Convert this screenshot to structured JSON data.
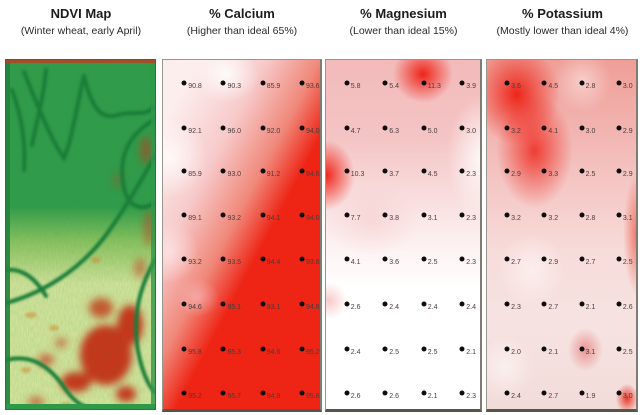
{
  "figure": {
    "background": "#ffffff",
    "description_colors": {
      "map_red": "#ee2414",
      "ndvi_green": "#2f9c48",
      "ndvi_yellow": "#dce89e",
      "ndvi_stress_red": "#d22f12",
      "sample_dot": "#0d0d0d"
    }
  },
  "chart_data": [
    {
      "type": "heatmap",
      "id": "ndvi",
      "title": "NDVI Map",
      "subtitle": "(Winter wheat, early April)"
    },
    {
      "type": "heatmap",
      "id": "calcium",
      "title": "% Calcium",
      "subtitle": "(Higher than ideal 65%)",
      "cols_frac": [
        0.135,
        0.385,
        0.635,
        0.885
      ],
      "rows_frac": [
        0.065,
        0.195,
        0.318,
        0.445,
        0.57,
        0.7,
        0.828,
        0.955
      ],
      "values": [
        [
          "90.8",
          "90.3",
          "85.9",
          "93.6"
        ],
        [
          "92.1",
          "96.0",
          "92.0",
          "94.0"
        ],
        [
          "85.9",
          "93.0",
          "91.2",
          "94.6"
        ],
        [
          "89.1",
          "93.2",
          "94.1",
          "94.0"
        ],
        [
          "93.2",
          "93.5",
          "94.4",
          "93.8"
        ],
        [
          "94.6",
          "95.1",
          "93.1",
          "94.8"
        ],
        [
          "95.8",
          "95.3",
          "94.6",
          "95.2"
        ],
        [
          "95.2",
          "95.7",
          "94.9",
          "95.6"
        ]
      ]
    },
    {
      "type": "heatmap",
      "id": "magnesium",
      "title": "% Magnesium",
      "subtitle": "(Lower than ideal 15%)",
      "cols_frac": [
        0.135,
        0.385,
        0.635,
        0.885
      ],
      "rows_frac": [
        0.065,
        0.195,
        0.318,
        0.445,
        0.57,
        0.7,
        0.828,
        0.955
      ],
      "values": [
        [
          "5.8",
          "5.4",
          "11.3",
          "3.9"
        ],
        [
          "4.7",
          "6.3",
          "5.0",
          "3.0"
        ],
        [
          "10.3",
          "3.7",
          "4.5",
          "2.3"
        ],
        [
          "7.7",
          "3.8",
          "3.1",
          "2.3"
        ],
        [
          "4.1",
          "3.6",
          "2.5",
          "2.3"
        ],
        [
          "2.6",
          "2.4",
          "2.4",
          "2.4"
        ],
        [
          "2.4",
          "2.5",
          "2.5",
          "2.1"
        ],
        [
          "2.6",
          "2.6",
          "2.1",
          "2.3"
        ]
      ]
    },
    {
      "type": "heatmap",
      "id": "potassium",
      "title": "% Potassium",
      "subtitle": "(Mostly lower than ideal 4%)",
      "cols_frac": [
        0.135,
        0.385,
        0.635,
        0.885
      ],
      "rows_frac": [
        0.065,
        0.195,
        0.318,
        0.445,
        0.57,
        0.7,
        0.828,
        0.955
      ],
      "values": [
        [
          "3.6",
          "4.5",
          "2.8",
          "3.0"
        ],
        [
          "3.2",
          "4.1",
          "3.0",
          "2.9"
        ],
        [
          "2.9",
          "3.3",
          "2.5",
          "2.9"
        ],
        [
          "3.2",
          "3.2",
          "2.8",
          "3.1"
        ],
        [
          "2.7",
          "2.9",
          "2.7",
          "2.5"
        ],
        [
          "2.3",
          "2.7",
          "2.1",
          "2.6"
        ],
        [
          "2.0",
          "2.1",
          "3.1",
          "2.5"
        ],
        [
          "2.4",
          "2.7",
          "1.9",
          "3.0"
        ]
      ]
    }
  ]
}
